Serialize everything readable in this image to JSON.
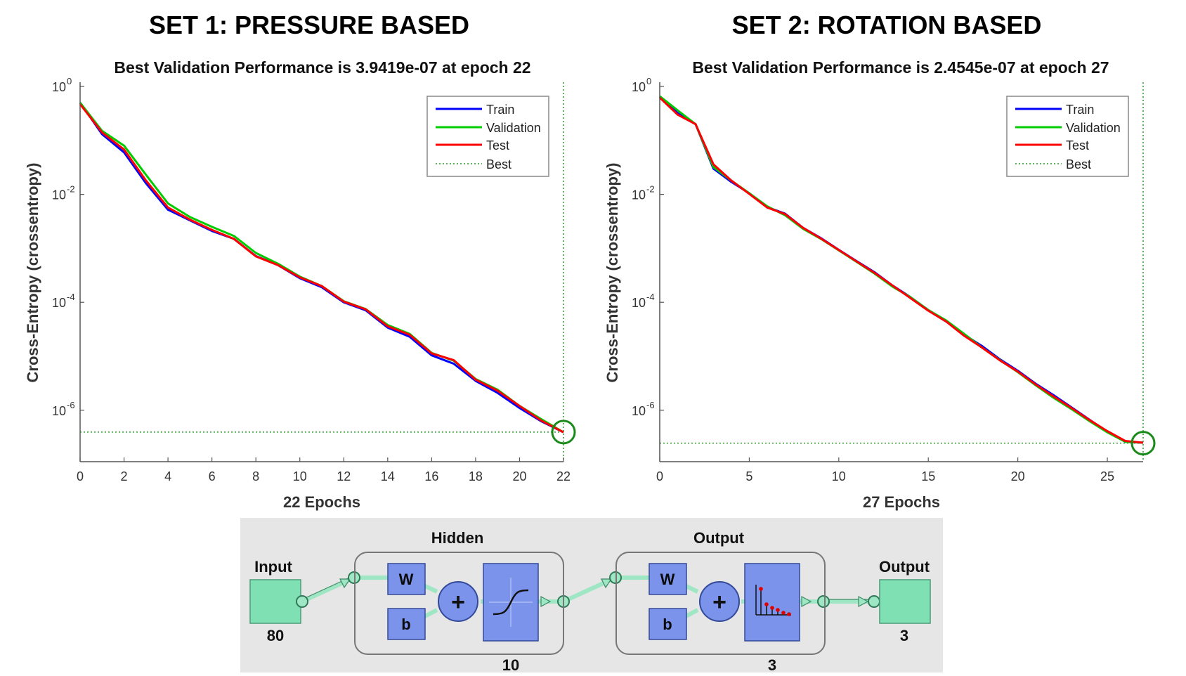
{
  "chart_data": [
    {
      "type": "line",
      "set_title": "SET 1: PRESSURE BASED",
      "title": "Best Validation Performance is 3.9419e-07 at epoch 22",
      "xlabel": "22 Epochs",
      "ylabel": "Cross-Entropy  (crossentropy)",
      "yscale": "log",
      "xlim": [
        0,
        22
      ],
      "ylim": [
        1e-07,
        1
      ],
      "xticks": [
        0,
        2,
        4,
        6,
        8,
        10,
        12,
        14,
        16,
        18,
        20,
        22
      ],
      "yticks": [
        {
          "base": "10",
          "exp": "0",
          "value": 1
        },
        {
          "base": "10",
          "exp": "-2",
          "value": 0.01
        },
        {
          "base": "10",
          "exp": "-4",
          "value": 0.0001
        },
        {
          "base": "10",
          "exp": "-6",
          "value": 1e-06
        }
      ],
      "legend_position": "top-right",
      "best": {
        "epoch": 22,
        "value": 3.9419e-07
      },
      "x": [
        0,
        1,
        2,
        3,
        4,
        5,
        6,
        7,
        8,
        9,
        10,
        11,
        12,
        13,
        14,
        15,
        16,
        17,
        18,
        19,
        20,
        21,
        22
      ],
      "series": [
        {
          "name": "Train",
          "color": "#0000ff",
          "values": [
            0.5,
            0.13,
            0.06,
            0.016,
            0.0052,
            0.0033,
            0.0021,
            0.0015,
            0.00072,
            0.00049,
            0.00028,
            0.00019,
            0.0001,
            7.1e-05,
            3.4e-05,
            2.3e-05,
            1.04e-05,
            7.3e-06,
            3.5e-06,
            2.1e-06,
            1.1e-06,
            6.2e-07,
            3.9e-07
          ]
        },
        {
          "name": "Validation",
          "color": "#00cc00",
          "values": [
            0.5,
            0.15,
            0.08,
            0.023,
            0.0068,
            0.0038,
            0.0025,
            0.0017,
            0.00082,
            0.00052,
            0.0003,
            0.0002,
            0.000105,
            7.5e-05,
            3.8e-05,
            2.6e-05,
            1.15e-05,
            8.3e-06,
            3.8e-06,
            2.4e-06,
            1.2e-06,
            6.8e-07,
            3.9e-07
          ]
        },
        {
          "name": "Test",
          "color": "#ff0000",
          "values": [
            0.47,
            0.14,
            0.068,
            0.018,
            0.0057,
            0.0034,
            0.0022,
            0.0015,
            0.00071,
            0.00049,
            0.00029,
            0.0002,
            0.000103,
            7.4e-05,
            3.6e-05,
            2.5e-05,
            1.13e-05,
            8.5e-06,
            3.7e-06,
            2.3e-06,
            1.2e-06,
            6.4e-07,
            3.9e-07
          ]
        }
      ]
    },
    {
      "type": "line",
      "set_title": "SET 2: ROTATION BASED",
      "title": "Best Validation Performance is 2.4545e-07 at epoch 27",
      "xlabel": "27 Epochs",
      "ylabel": "Cross-Entropy  (crossentropy)",
      "yscale": "log",
      "xlim": [
        0,
        27
      ],
      "ylim": [
        1e-07,
        1
      ],
      "xticks": [
        0,
        5,
        10,
        15,
        20,
        25
      ],
      "yticks": [
        {
          "base": "10",
          "exp": "0",
          "value": 1
        },
        {
          "base": "10",
          "exp": "-2",
          "value": 0.01
        },
        {
          "base": "10",
          "exp": "-4",
          "value": 0.0001
        },
        {
          "base": "10",
          "exp": "-6",
          "value": 1e-06
        }
      ],
      "legend_position": "top-right",
      "best": {
        "epoch": 27,
        "value": 2.4545e-07
      },
      "x": [
        0,
        1,
        2,
        3,
        4,
        5,
        6,
        7,
        8,
        9,
        10,
        11,
        12,
        13,
        14,
        15,
        16,
        17,
        18,
        19,
        20,
        21,
        22,
        23,
        24,
        25,
        26,
        27
      ],
      "series": [
        {
          "name": "Train",
          "color": "#0000ff",
          "values": [
            0.65,
            0.32,
            0.2,
            0.03,
            0.017,
            0.0105,
            0.0058,
            0.0044,
            0.0024,
            0.00155,
            0.00094,
            0.00058,
            0.00036,
            0.000205,
            0.000125,
            7.2e-05,
            4.4e-05,
            2.5e-05,
            1.55e-05,
            8.8e-06,
            5.4e-06,
            3.1e-06,
            1.9e-06,
            1.13e-06,
            6.7e-07,
            4e-07,
            2.6e-07,
            2.5e-07
          ]
        },
        {
          "name": "Validation",
          "color": "#00cc00",
          "values": [
            0.66,
            0.36,
            0.2,
            0.032,
            0.018,
            0.0105,
            0.006,
            0.0041,
            0.0023,
            0.0015,
            0.00092,
            0.00056,
            0.00034,
            0.000195,
            0.000125,
            7.2e-05,
            4.6e-05,
            2.6e-05,
            1.45e-05,
            8.5e-06,
            5.1e-06,
            2.9e-06,
            1.7e-06,
            1.05e-06,
            6.3e-07,
            3.9e-07,
            2.6e-07,
            2.5e-07
          ]
        },
        {
          "name": "Test",
          "color": "#ff0000",
          "values": [
            0.62,
            0.3,
            0.2,
            0.036,
            0.018,
            0.0102,
            0.0057,
            0.0043,
            0.0024,
            0.00152,
            0.00093,
            0.00057,
            0.00035,
            0.000205,
            0.00012,
            7e-05,
            4.4e-05,
            2.4e-05,
            1.45e-05,
            8.4e-06,
            5.2e-06,
            3e-06,
            1.8e-06,
            1.1e-06,
            6.6e-07,
            4.1e-07,
            2.7e-07,
            2.5e-07
          ]
        }
      ]
    }
  ],
  "legend": {
    "train": "Train",
    "validation": "Validation",
    "test": "Test",
    "best": "Best"
  },
  "network": {
    "input_label": "Input",
    "input_size": "80",
    "hidden_label": "Hidden",
    "hidden_size": "10",
    "output_layer_label": "Output",
    "output_layer_size": "3",
    "output_label": "Output",
    "output_size": "3",
    "weight": "W",
    "bias": "b",
    "plus": "+",
    "colors": {
      "background": "#e6e6e6",
      "io_block": "#7fe0b4",
      "layer_block": "#7b93ea",
      "connector": "#9fe6c4"
    }
  }
}
